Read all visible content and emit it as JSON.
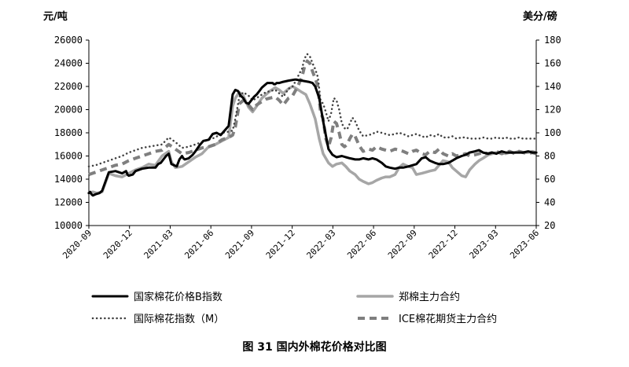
{
  "chart_data": {
    "type": "line",
    "title": "",
    "caption": "图 31    国内外棉花价格对比图",
    "left_unit": "元/吨",
    "right_unit": "美分/磅",
    "y_left": {
      "min": 10000,
      "max": 26000,
      "ticks": [
        "10000",
        "12000",
        "14000",
        "16000",
        "18000",
        "20000",
        "22000",
        "24000",
        "26000"
      ]
    },
    "y_right": {
      "min": 20,
      "max": 180,
      "ticks": [
        "20",
        "40",
        "60",
        "80",
        "100",
        "120",
        "140",
        "160",
        "180"
      ]
    },
    "x_ticks": [
      "2020-09",
      "2020-12",
      "2021-03",
      "2021-06",
      "2021-09",
      "2021-12",
      "2022-03",
      "2022-06",
      "2022-09",
      "2022-12",
      "2023-03",
      "2023-06"
    ],
    "grid": false,
    "legend_position": "bottom",
    "series": [
      {
        "name": "国家棉花价格B指数",
        "axis": "left",
        "style": "solid-black",
        "color": "#000000",
        "x": [
          0,
          0.1,
          0.2,
          0.3,
          0.5,
          0.8,
          1.0,
          1.5,
          2.0,
          2.5,
          2.8,
          2.9,
          3.0,
          3.3,
          3.5,
          4.0,
          4.5,
          5.0,
          5.2,
          5.4,
          5.8,
          6.0,
          6.2,
          6.4,
          6.6,
          6.8,
          7.0,
          7.1,
          7.2,
          7.5,
          7.8,
          8.0,
          8.3,
          8.6,
          9.0,
          9.3,
          9.6,
          9.9,
          10.2,
          10.5,
          10.8,
          11.0,
          11.2,
          11.4,
          11.6,
          11.8,
          12.0,
          12.2,
          12.4,
          12.6,
          12.8,
          13.0,
          13.2,
          13.4,
          13.6,
          13.8,
          13.9,
          14.0,
          14.1,
          14.3,
          14.6,
          15.0,
          15.5,
          16.0,
          16.5,
          16.8,
          17.0,
          17.3,
          17.6,
          18.0,
          18.3,
          18.6,
          19.0,
          19.3,
          19.6,
          20.0,
          20.3,
          20.6,
          21.0,
          21.3,
          21.6,
          22.0,
          22.3,
          22.6,
          23.0,
          23.3,
          23.6,
          24.0,
          24.3,
          24.6,
          25.0,
          25.3,
          25.6,
          26.0,
          26.3,
          26.6,
          27.0,
          27.3,
          27.6,
          28.0,
          28.3,
          28.6,
          29.0,
          29.3,
          29.6,
          30.0,
          30.3,
          30.6,
          31.0,
          31.3,
          31.6,
          32.0,
          32.3,
          32.6,
          33.0,
          33.3,
          33.6
        ],
        "values": [
          12800,
          12900,
          12700,
          12600,
          12700,
          12800,
          13000,
          14600,
          14700,
          14500,
          14700,
          14400,
          14300,
          14400,
          14700,
          14900,
          15000,
          15000,
          15300,
          15400,
          16000,
          16200,
          15300,
          15200,
          15100,
          15700,
          16000,
          15800,
          15700,
          15800,
          16100,
          16400,
          16900,
          17300,
          17400,
          17900,
          18000,
          17800,
          18200,
          18600,
          21300,
          21700,
          21600,
          21200,
          21000,
          20600,
          20500,
          20800,
          21100,
          21300,
          21600,
          21900,
          22100,
          22300,
          22300,
          22300,
          22200,
          22200,
          22300,
          22300,
          22400,
          22500,
          22600,
          22500,
          22400,
          22300,
          22000,
          21000,
          19000,
          16600,
          16100,
          15900,
          16000,
          15900,
          15800,
          15700,
          15700,
          15800,
          15700,
          15800,
          15700,
          15400,
          15100,
          15000,
          14900,
          15000,
          15000,
          15100,
          15200,
          15300,
          15800,
          15900,
          15600,
          15400,
          15300,
          15300,
          15400,
          15600,
          15800,
          16000,
          16100,
          16300,
          16400,
          16500,
          16300,
          16200,
          16300,
          16200,
          16400,
          16300,
          16300,
          16300,
          16300,
          16300,
          16400,
          16300,
          16300
        ],
        "interpolation": "linear"
      },
      {
        "name": "郑棉主力合约",
        "axis": "left",
        "style": "solid-gray",
        "color": "#a6a6a6",
        "x": [
          0,
          0.3,
          0.6,
          1.0,
          1.5,
          2.0,
          2.5,
          3.0,
          3.5,
          4.0,
          4.5,
          5.0,
          5.5,
          6.0,
          6.2,
          6.5,
          7.0,
          7.5,
          8.0,
          8.5,
          9.0,
          9.5,
          10.0,
          10.5,
          10.8,
          11.0,
          11.3,
          11.6,
          12.0,
          12.3,
          12.6,
          13.0,
          13.3,
          13.6,
          14.0,
          14.3,
          14.6,
          15.0,
          15.3,
          15.6,
          16.0,
          16.3,
          16.6,
          17.0,
          17.3,
          17.6,
          18.0,
          18.3,
          18.6,
          19.0,
          19.3,
          19.6,
          20.0,
          20.3,
          20.6,
          21.0,
          21.3,
          21.6,
          22.0,
          22.3,
          22.6,
          23.0,
          23.3,
          23.6,
          24.0,
          24.3,
          24.6,
          25.0,
          25.3,
          25.6,
          26.0,
          26.3,
          26.6,
          27.0,
          27.3,
          27.6,
          28.0,
          28.3,
          28.6,
          29.0,
          29.3,
          29.6,
          30.0,
          30.3,
          30.6,
          31.0,
          31.3,
          31.6,
          32.0,
          32.3,
          32.6,
          33.0,
          33.3,
          33.6
        ],
        "values": [
          12800,
          12900,
          12800,
          12900,
          14500,
          14300,
          14200,
          14500,
          14800,
          15000,
          15300,
          15200,
          16000,
          16400,
          15500,
          15000,
          15100,
          15500,
          15900,
          16200,
          16800,
          17000,
          17300,
          17600,
          20300,
          21000,
          21500,
          21200,
          20200,
          19800,
          20300,
          21000,
          21300,
          21600,
          21900,
          21700,
          21400,
          21800,
          22000,
          21800,
          21500,
          21300,
          20500,
          19200,
          17500,
          16200,
          15400,
          15100,
          15300,
          15400,
          15100,
          14700,
          14400,
          14000,
          13800,
          13600,
          13700,
          13900,
          14100,
          14200,
          14200,
          14400,
          15000,
          15300,
          15100,
          15000,
          14400,
          14500,
          14600,
          14700,
          14800,
          15200,
          15600,
          15500,
          15000,
          14700,
          14300,
          14200,
          14800,
          15300,
          15600,
          15800,
          16100,
          16200,
          16300,
          16300,
          16200,
          16300,
          16300,
          16400,
          16300,
          16300,
          16400,
          16300
        ],
        "interpolation": "linear"
      },
      {
        "name": "国际棉花指数（M）",
        "axis": "right",
        "style": "dotted-black",
        "color": "#333333",
        "x": [
          0,
          0.5,
          1.0,
          1.5,
          2.0,
          2.5,
          3.0,
          3.5,
          4.0,
          4.5,
          5.0,
          5.5,
          6.0,
          6.5,
          7.0,
          7.5,
          8.0,
          8.5,
          9.0,
          9.5,
          10.0,
          10.5,
          10.8,
          11.0,
          11.3,
          11.6,
          12.0,
          12.3,
          12.6,
          13.0,
          13.3,
          13.6,
          14.0,
          14.3,
          14.6,
          15.0,
          15.3,
          15.6,
          15.8,
          16.0,
          16.2,
          16.4,
          16.6,
          16.8,
          17.0,
          17.2,
          17.4,
          17.6,
          17.8,
          18.0,
          18.2,
          18.4,
          18.6,
          18.8,
          19.0,
          19.2,
          19.4,
          19.6,
          19.8,
          20.0,
          20.3,
          20.6,
          21.0,
          21.3,
          21.6,
          22.0,
          22.3,
          22.6,
          23.0,
          23.3,
          23.6,
          24.0,
          24.3,
          24.6,
          25.0,
          25.3,
          25.6,
          26.0,
          26.3,
          26.6,
          27.0,
          27.3,
          27.6,
          28.0,
          28.3,
          28.6,
          29.0,
          29.3,
          29.6,
          30.0,
          30.3,
          30.6,
          31.0,
          31.3,
          31.6,
          32.0,
          32.3,
          32.6,
          33.0,
          33.3,
          33.6
        ],
        "values": [
          71,
          72,
          74,
          76,
          78,
          80,
          83,
          85,
          87,
          88,
          89,
          90,
          96,
          92,
          87,
          88,
          90,
          92,
          94,
          96,
          100,
          101,
          102,
          112,
          131,
          135,
          132,
          128,
          130,
          133,
          135,
          136,
          137,
          134,
          131,
          138,
          140,
          146,
          151,
          155,
          164,
          168,
          166,
          160,
          155,
          148,
          128,
          125,
          118,
          110,
          117,
          130,
          128,
          120,
          108,
          104,
          103,
          108,
          113,
          110,
          102,
          97,
          98,
          99,
          101,
          100,
          99,
          98,
          99,
          100,
          99,
          97,
          98,
          99,
          97,
          96,
          98,
          97,
          99,
          96,
          96,
          97,
          95,
          96,
          96,
          95,
          95,
          95,
          96,
          95,
          95,
          96,
          95,
          96,
          95,
          95,
          96,
          95,
          95,
          95,
          95
        ],
        "interpolation": "linear"
      },
      {
        "name": "ICE棉花期货主力合约",
        "axis": "right",
        "style": "dashed-gray",
        "color": "#7f7f7f",
        "x": [
          0,
          0.5,
          1.0,
          1.5,
          2.0,
          2.5,
          3.0,
          3.5,
          4.0,
          4.5,
          5.0,
          5.5,
          6.0,
          6.5,
          7.0,
          7.5,
          8.0,
          8.5,
          9.0,
          9.5,
          10.0,
          10.5,
          10.8,
          11.0,
          11.3,
          11.6,
          12.0,
          12.3,
          12.6,
          13.0,
          13.3,
          13.6,
          14.0,
          14.3,
          14.6,
          15.0,
          15.3,
          15.6,
          15.8,
          16.0,
          16.2,
          16.4,
          16.6,
          16.8,
          17.0,
          17.2,
          17.4,
          17.6,
          17.8,
          18.0,
          18.2,
          18.4,
          18.6,
          18.8,
          19.0,
          19.2,
          19.4,
          19.6,
          19.8,
          20.0,
          20.3,
          20.6,
          21.0,
          21.3,
          21.6,
          22.0,
          22.3,
          22.6,
          23.0,
          23.3,
          23.6,
          24.0,
          24.3,
          24.6,
          25.0,
          25.3,
          25.6,
          26.0,
          26.3,
          26.6,
          27.0,
          27.3,
          27.6,
          28.0,
          28.3,
          28.6,
          29.0,
          29.3,
          29.6,
          30.0,
          30.3,
          30.6,
          31.0,
          31.3,
          31.6,
          32.0,
          32.3,
          32.6,
          33.0,
          33.3,
          33.6
        ],
        "values": [
          64,
          66,
          68,
          70,
          72,
          73,
          76,
          78,
          80,
          82,
          84,
          85,
          90,
          86,
          82,
          83,
          85,
          87,
          88,
          90,
          94,
          96,
          98,
          105,
          125,
          128,
          124,
          120,
          124,
          127,
          129,
          130,
          131,
          128,
          124,
          130,
          132,
          138,
          143,
          148,
          157,
          162,
          160,
          153,
          147,
          140,
          118,
          112,
          95,
          88,
          96,
          110,
          108,
          100,
          90,
          88,
          90,
          95,
          99,
          97,
          89,
          84,
          86,
          85,
          88,
          86,
          85,
          84,
          86,
          85,
          84,
          82,
          84,
          85,
          82,
          81,
          84,
          83,
          86,
          82,
          80,
          82,
          80,
          81,
          82,
          80,
          81,
          82,
          83,
          82,
          83,
          84,
          82,
          83,
          84,
          82,
          84,
          83,
          82,
          83,
          82
        ],
        "interpolation": "linear"
      }
    ]
  },
  "legend": {
    "items": [
      {
        "label": "国家棉花价格B指数"
      },
      {
        "label": "郑棉主力合约"
      },
      {
        "label": "国际棉花指数（M）"
      },
      {
        "label": "ICE棉花期货主力合约"
      }
    ]
  }
}
